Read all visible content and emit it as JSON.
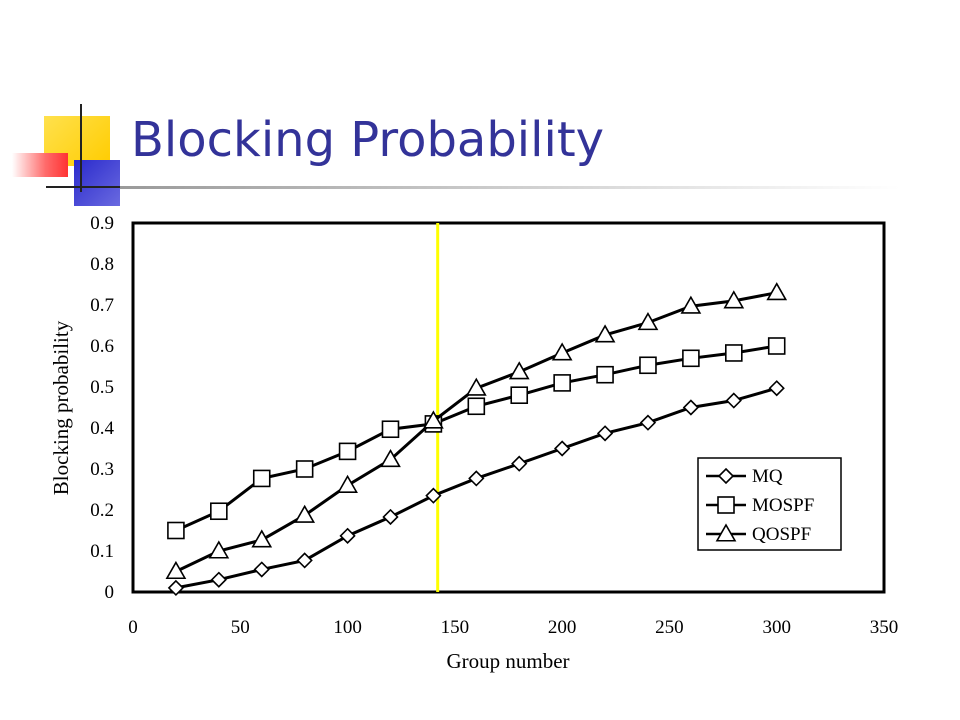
{
  "slide": {
    "title": "Blocking Probability"
  },
  "colors": {
    "title": "#333399",
    "marker_line": "#ffff00",
    "deco_yellow": "#ffcc00",
    "deco_blue": "#3333cc",
    "deco_red": "#ff3333"
  },
  "chart_data": {
    "type": "line",
    "xlabel": "Group number",
    "ylabel": "Blocking probability",
    "xlim": [
      0,
      350
    ],
    "ylim": [
      0,
      0.9
    ],
    "x_ticks": [
      "0",
      "50",
      "100",
      "150",
      "200",
      "250",
      "300",
      "350"
    ],
    "y_ticks": [
      "0",
      "0.1",
      "0.2",
      "0.3",
      "0.4",
      "0.5",
      "0.6",
      "0.7",
      "0.8",
      "0.9"
    ],
    "x": [
      20,
      40,
      60,
      80,
      100,
      120,
      140,
      160,
      180,
      200,
      220,
      240,
      260,
      280,
      300
    ],
    "series": [
      {
        "name": "MQ",
        "marker": "diamond",
        "values": [
          0.01,
          0.03,
          0.055,
          0.077,
          0.137,
          0.183,
          0.235,
          0.277,
          0.313,
          0.35,
          0.387,
          0.413,
          0.45,
          0.467,
          0.497
        ]
      },
      {
        "name": "MOSPF",
        "marker": "square",
        "values": [
          0.15,
          0.197,
          0.277,
          0.3,
          0.343,
          0.397,
          0.41,
          0.453,
          0.48,
          0.51,
          0.53,
          0.553,
          0.57,
          0.583,
          0.6
        ]
      },
      {
        "name": "QOSPF",
        "marker": "triangle",
        "values": [
          0.05,
          0.1,
          0.127,
          0.187,
          0.26,
          0.323,
          0.417,
          0.497,
          0.537,
          0.583,
          0.627,
          0.657,
          0.697,
          0.71,
          0.73
        ]
      }
    ],
    "reference_line_x": 142,
    "legend_position": "bottom-right",
    "grid": false
  }
}
